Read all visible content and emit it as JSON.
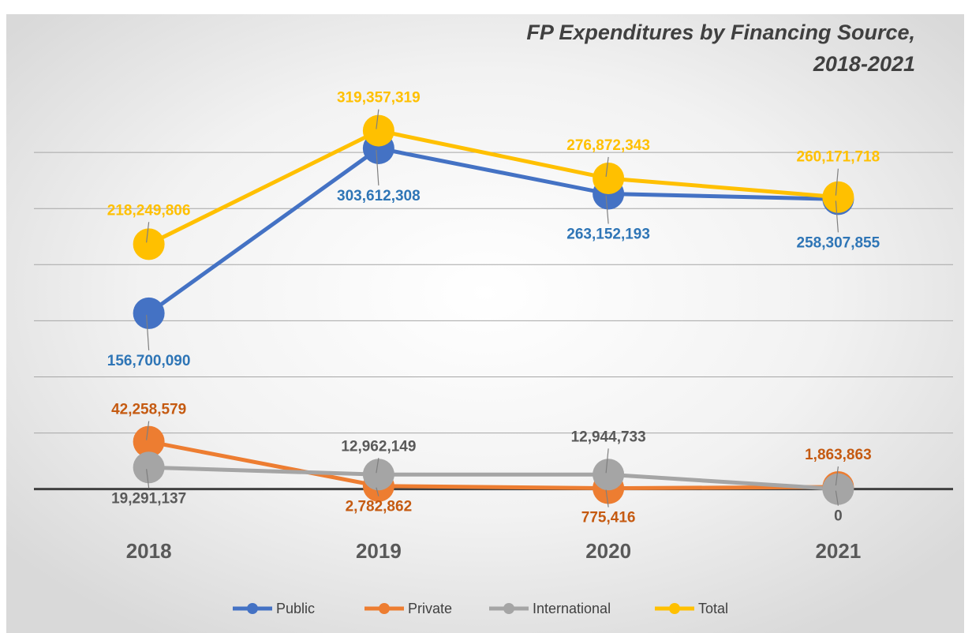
{
  "chart_data": {
    "type": "line",
    "title": [
      "FP Expenditures by Financing Source,",
      "2018-2021"
    ],
    "categories": [
      "2018",
      "2019",
      "2020",
      "2021"
    ],
    "ylim": [
      -15000000,
      350000000
    ],
    "yticks": [
      0,
      50000000,
      100000000,
      150000000,
      200000000,
      250000000,
      300000000
    ],
    "grid": true,
    "legend": "bottom",
    "series": [
      {
        "name": "Public",
        "color": "#4472c4",
        "label_color": "#2e75b6",
        "values": [
          156700090,
          303612308,
          263152193,
          258307855
        ],
        "value_labels": [
          "156,700,090",
          "303,612,308",
          "263,152,193",
          "258,307,855"
        ]
      },
      {
        "name": "Private",
        "color": "#ed7d31",
        "label_color": "#c55a11",
        "values": [
          42258579,
          2782862,
          775416,
          1863863
        ],
        "value_labels": [
          "42,258,579",
          "2,782,862",
          "775,416",
          "1,863,863"
        ]
      },
      {
        "name": "International",
        "color": "#a5a5a5",
        "label_color": "#595959",
        "values": [
          19291137,
          12962149,
          12944733,
          0
        ],
        "value_labels": [
          "19,291,137",
          "12,962,149",
          "12,944,733",
          "0"
        ]
      },
      {
        "name": "Total",
        "color": "#ffc000",
        "label_color": "#ffc000",
        "values": [
          218249806,
          319357319,
          276872343,
          260171718
        ],
        "value_labels": [
          "218,249,806",
          "319,357,319",
          "276,872,343",
          "260,171,718"
        ]
      }
    ]
  }
}
